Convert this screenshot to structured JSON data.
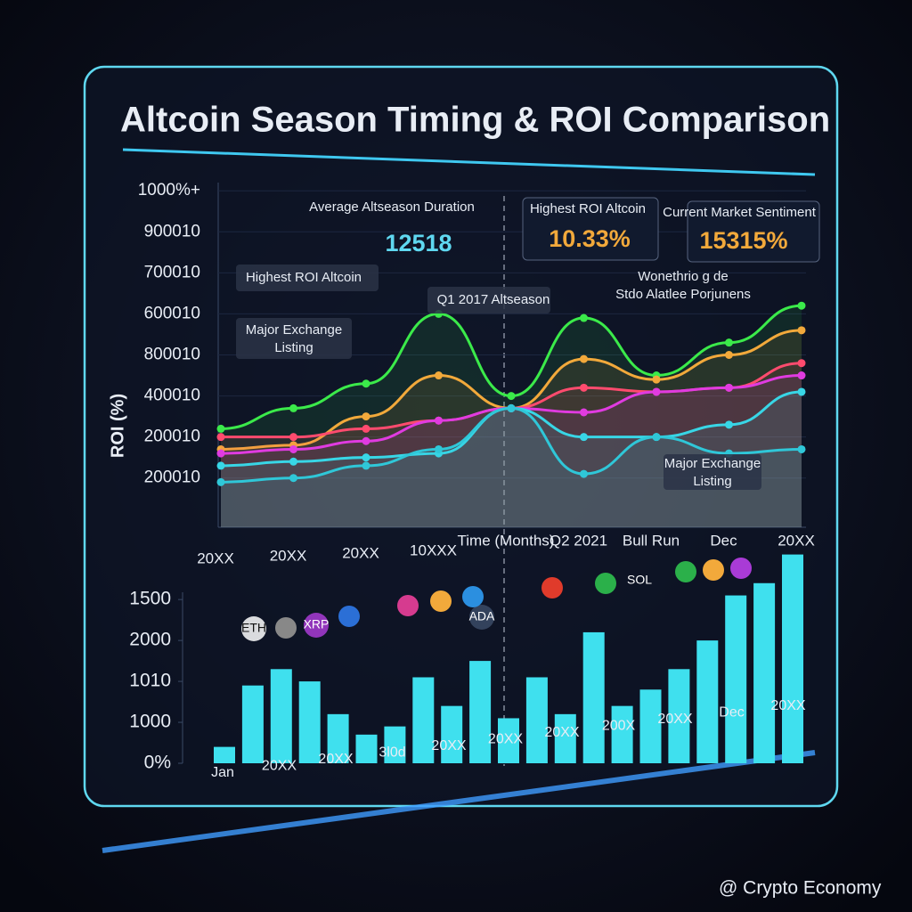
{
  "chart_data": [
    {
      "type": "line",
      "title": "Altcoin Season Timing & ROI Comparison",
      "ylabel": "ROI (%)",
      "categories": [
        "20XX",
        "20XX",
        "20XX",
        "10XXX",
        "Time (Months)",
        "Q2 2021",
        "Bull Run",
        "Dec",
        "20XX"
      ],
      "ylim": [
        -1.2,
        7.2
      ],
      "yticks": [
        {
          "value": 0,
          "label": "200010"
        },
        {
          "value": 1,
          "label": "200010"
        },
        {
          "value": 2,
          "label": "400010"
        },
        {
          "value": 3,
          "label": "800010"
        },
        {
          "value": 4,
          "label": "600010"
        },
        {
          "value": 5,
          "label": "700010"
        },
        {
          "value": 6,
          "label": "900010"
        },
        {
          "value": 7,
          "label": "1000%+"
        }
      ],
      "series": [
        {
          "color": "#3bea4a",
          "values": [
            1.2,
            1.7,
            2.3,
            4.0,
            2.0,
            3.9,
            2.5,
            3.3,
            4.2
          ]
        },
        {
          "color": "#f2a93b",
          "values": [
            0.7,
            0.8,
            1.5,
            2.5,
            1.7,
            2.9,
            2.4,
            3.0,
            3.6
          ]
        },
        {
          "color": "#ff4b6e",
          "values": [
            1.0,
            1.0,
            1.2,
            1.4,
            1.7,
            2.2,
            2.1,
            2.2,
            2.8
          ]
        },
        {
          "color": "#e03be0",
          "values": [
            0.6,
            0.7,
            0.9,
            1.4,
            1.7,
            1.6,
            2.1,
            2.2,
            2.5
          ]
        },
        {
          "color": "#38d6e6",
          "values": [
            0.3,
            0.4,
            0.5,
            0.6,
            1.7,
            1.0,
            1.0,
            1.3,
            2.1
          ]
        },
        {
          "color": "#2fc7d8",
          "values": [
            -0.1,
            0.0,
            0.3,
            0.7,
            1.7,
            0.1,
            1.0,
            0.6,
            0.7
          ]
        }
      ],
      "stats": [
        {
          "label": "Average Altseason Duration",
          "value": "12518"
        },
        {
          "label": "Highest ROI Altcoin",
          "value": "10.33%"
        },
        {
          "label": "Current Market Sentiment",
          "value": "15315%"
        }
      ],
      "annotations": [
        "Highest ROI Altcoin",
        "Q1 2017 Altseason",
        "Major Exchange Listing",
        "Wonethrio g de Stdo Alatlee Porjunens",
        "Major Exchange Listing"
      ]
    },
    {
      "type": "bar",
      "color": "#3fe0ee",
      "values": [
        0.4,
        1.9,
        2.3,
        2.0,
        1.2,
        0.7,
        0.9,
        2.1,
        1.4,
        2.5,
        1.1,
        2.1,
        1.2,
        3.2,
        1.4,
        1.8,
        2.3,
        3.0,
        4.1,
        4.4,
        5.1
      ],
      "ylim": [
        0,
        5.2
      ],
      "yticks": [
        {
          "value": 0,
          "label": "0%"
        },
        {
          "value": 1,
          "label": "1000"
        },
        {
          "value": 2,
          "label": "1010"
        },
        {
          "value": 3,
          "label": "2000"
        },
        {
          "value": 4,
          "label": "1500"
        }
      ],
      "x_axis_labels": [
        "Jan",
        "20XX",
        "20XX",
        "3l0d",
        "20XX",
        "20XX",
        "20XX",
        "200X",
        "20XX",
        "Dec",
        "20XX"
      ],
      "coins": [
        "ETH",
        "XRP",
        "ADA",
        "SOL"
      ]
    }
  ],
  "watermark": "@ Crypto Economy"
}
